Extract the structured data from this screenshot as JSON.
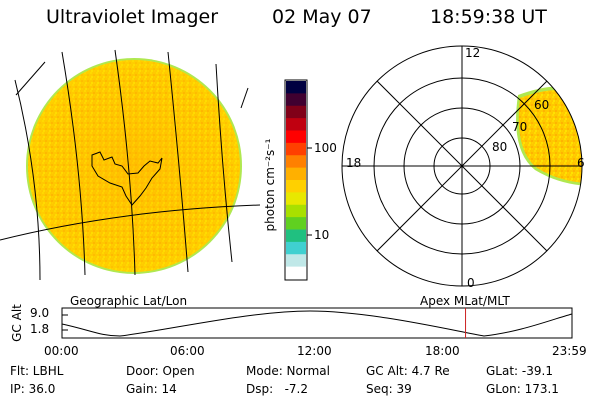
{
  "header": {
    "instrument": "Ultraviolet Imager",
    "date": "02 May 07",
    "time": "18:59:38 UT"
  },
  "colorbar": {
    "label": "photon cm⁻²s⁻¹",
    "ticks": [
      "100",
      "10"
    ],
    "scale": "log",
    "colors": [
      "#000040",
      "#400030",
      "#800018",
      "#c00010",
      "#ff0000",
      "#ff4000",
      "#ff8000",
      "#ffb000",
      "#ffd000",
      "#e8e800",
      "#a8e000",
      "#60d020",
      "#20c080",
      "#40d0d0",
      "#c0e8e8",
      "#ffffff"
    ]
  },
  "polar_plot": {
    "mlt_labels": {
      "top": "12",
      "left": "18",
      "right": "6",
      "bottom": "0"
    },
    "lat_labels": [
      "80",
      "70",
      "60"
    ]
  },
  "altitude_panel": {
    "ylabel": "GC Alt",
    "yticks": [
      "9.0",
      "1.8"
    ],
    "left_title": "Geographic Lat/Lon",
    "right_title": "Apex MLat/MLT",
    "xticks": [
      "00:00",
      "06:00",
      "12:00",
      "18:00",
      "23:59"
    ],
    "current_time_hours": 18.99
  },
  "info_rows": [
    [
      {
        "id": "filter",
        "text": "Flt: LBHL"
      },
      {
        "id": "door",
        "text": "Door: Open"
      },
      {
        "id": "mode",
        "text": "Mode: Normal"
      },
      {
        "id": "gc-alt",
        "text": "GC Alt: 4.7 Re"
      },
      {
        "id": "glat",
        "text": "GLat: -39.1"
      }
    ],
    [
      {
        "id": "ip",
        "text": "IP: 36.0"
      },
      {
        "id": "gain",
        "text": "Gain: 14"
      },
      {
        "id": "dsp",
        "text": "Dsp:   -7.2"
      },
      {
        "id": "seq",
        "text": "Seq: 39"
      },
      {
        "id": "glon",
        "text": "GLon: 173.1"
      }
    ]
  ]
}
